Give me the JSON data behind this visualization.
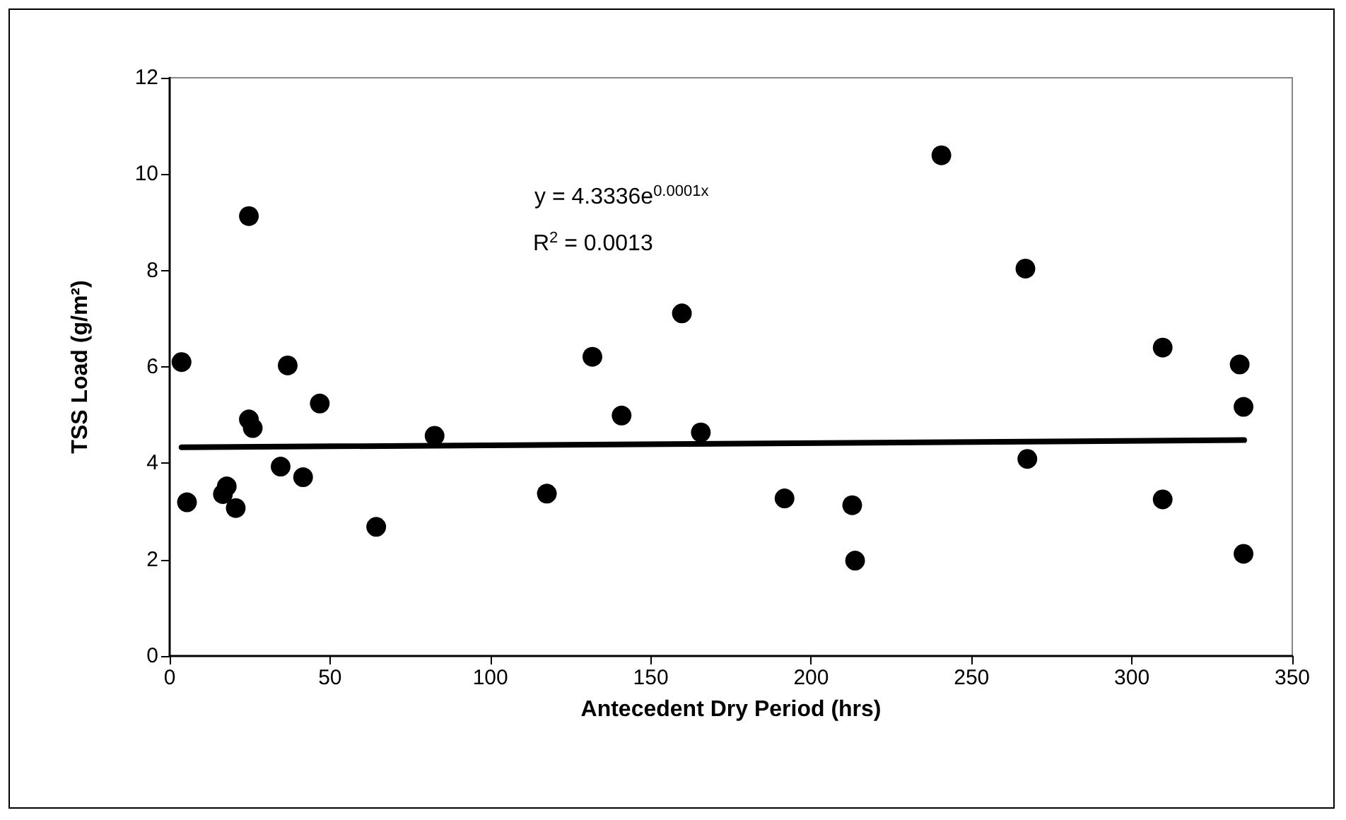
{
  "chart_data": {
    "type": "scatter",
    "xlabel": "Antecedent Dry Period (hrs)",
    "ylabel": "TSS Load (g/m²)",
    "xlim": [
      0,
      350
    ],
    "xticks": [
      0,
      50,
      100,
      150,
      200,
      250,
      300,
      350
    ],
    "ylim": [
      0,
      12
    ],
    "yticks": [
      0,
      2,
      4,
      6,
      8,
      10,
      12
    ],
    "grid": false,
    "marker": "circle",
    "annotations": [
      "y = 4.3336e$^{0.0001x}$",
      "R$^{2}$ = 0.0013"
    ],
    "series": [
      {
        "type": "scatter",
        "color": "#000000",
        "x": [
          3.7,
          5.4,
          24.7,
          24.7,
          25.9,
          36.8,
          46.8,
          34.6,
          41.6,
          16.6,
          17.8,
          20.6,
          64.4,
          82.6,
          117.6,
          131.8,
          140.9,
          159.7,
          165.6,
          240.6,
          266.8,
          191.7,
          212.8,
          213.7,
          267.4,
          309.6,
          309.6,
          333.6,
          334.8,
          334.8
        ],
        "values": [
          6.1,
          3.19,
          9.13,
          4.91,
          4.73,
          6.03,
          5.24,
          3.93,
          3.71,
          3.36,
          3.52,
          3.07,
          2.68,
          4.57,
          3.37,
          6.21,
          4.99,
          7.11,
          4.64,
          10.39,
          8.04,
          3.27,
          3.13,
          1.98,
          4.09,
          6.4,
          3.25,
          6.05,
          5.17,
          2.12
        ]
      },
      {
        "type": "line",
        "color": "#000000",
        "line_style": "solid",
        "marker": "none",
        "x": [
          3.7,
          335
        ],
        "values": [
          4.33,
          4.48
        ]
      }
    ]
  }
}
